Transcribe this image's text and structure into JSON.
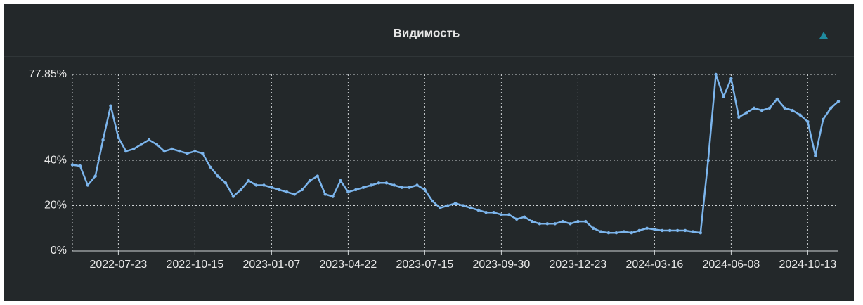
{
  "chart_data": {
    "type": "line",
    "title": "Видимость",
    "categories": [
      null,
      null,
      null,
      null,
      null,
      null,
      "2022-07-23",
      null,
      null,
      null,
      null,
      null,
      null,
      null,
      null,
      null,
      "2022-10-15",
      null,
      null,
      null,
      null,
      null,
      null,
      null,
      null,
      null,
      "2023-01-07",
      null,
      null,
      null,
      null,
      null,
      null,
      null,
      null,
      null,
      "2023-04-22",
      null,
      null,
      null,
      null,
      null,
      null,
      null,
      null,
      null,
      "2023-07-15",
      null,
      null,
      null,
      null,
      null,
      null,
      null,
      null,
      null,
      "2023-09-30",
      null,
      null,
      null,
      null,
      null,
      null,
      null,
      null,
      null,
      "2023-12-23",
      null,
      null,
      null,
      null,
      null,
      null,
      null,
      null,
      null,
      "2024-03-16",
      null,
      null,
      null,
      null,
      null,
      null,
      null,
      null,
      null,
      "2024-06-08",
      null,
      null,
      null,
      null,
      null,
      null,
      null,
      null,
      null,
      "2024-10-13",
      null,
      null,
      null,
      null
    ],
    "series": [
      {
        "name": "Видимость",
        "color": "#7cb5ec",
        "values": [
          38,
          37.5,
          29,
          33,
          49,
          64,
          50,
          44,
          45,
          47,
          49,
          47,
          44,
          45,
          44,
          43,
          44,
          43,
          37,
          33,
          30,
          24,
          27,
          31,
          29,
          29,
          28,
          27,
          26,
          25,
          27,
          31,
          33,
          25,
          24,
          31,
          26,
          27,
          28,
          29,
          30,
          30,
          29,
          28,
          28,
          29,
          27,
          22,
          19,
          20,
          21,
          20,
          19,
          18,
          17,
          17,
          16,
          16,
          14,
          15,
          13,
          12,
          12,
          12,
          13,
          12,
          13,
          13,
          10,
          8.5,
          8,
          8,
          8.5,
          8,
          9,
          10,
          9.5,
          9,
          9,
          9,
          9,
          8.5,
          8,
          40,
          77.85,
          68,
          76,
          59,
          61,
          63,
          62,
          63,
          67,
          63,
          62,
          60,
          57,
          42,
          58,
          63,
          66
        ]
      }
    ],
    "ylim": [
      0,
      77.85
    ],
    "yticks": [
      {
        "value": 0,
        "label": "0%"
      },
      {
        "value": 20,
        "label": "20%"
      },
      {
        "value": 40,
        "label": "40%"
      },
      {
        "value": 77.85,
        "label": "77.85%"
      }
    ],
    "grid": true
  }
}
